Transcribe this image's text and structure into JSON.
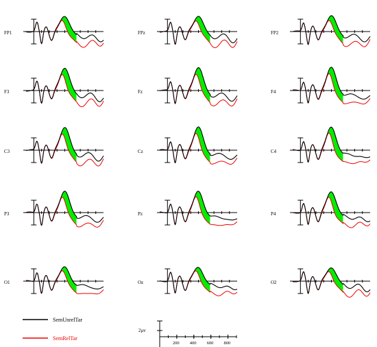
{
  "chart_data": {
    "type": "line",
    "description_rows": 5,
    "grid": false,
    "x_unit": "ms",
    "x_ticks": [
      200,
      400,
      600,
      800
    ],
    "xlim": [
      -100,
      900
    ],
    "scale_label": "2μv",
    "shading": "difference between SemUnrelTar and SemRelTar shaded where unrelated exceeds related",
    "shade_color": "#00ee00",
    "legend": {
      "placement": "bottom-left",
      "entries": [
        {
          "name": "SemUnrelTar",
          "color": "#000000"
        },
        {
          "name": "SemRelTar",
          "color": "#ee0000"
        }
      ]
    },
    "electrodes": [
      {
        "label": "FP1",
        "row": 0,
        "col": 0
      },
      {
        "label": "FPz",
        "row": 0,
        "col": 1
      },
      {
        "label": "FP2",
        "row": 0,
        "col": 2
      },
      {
        "label": "F3",
        "row": 1,
        "col": 0
      },
      {
        "label": "Fz",
        "row": 1,
        "col": 1
      },
      {
        "label": "F4",
        "row": 1,
        "col": 2
      },
      {
        "label": "C3",
        "row": 2,
        "col": 0
      },
      {
        "label": "Cz",
        "row": 2,
        "col": 1
      },
      {
        "label": "C4",
        "row": 2,
        "col": 2
      },
      {
        "label": "P3",
        "row": 3,
        "col": 0
      },
      {
        "label": "Pz",
        "row": 3,
        "col": 1
      },
      {
        "label": "P4",
        "row": 3,
        "col": 2
      },
      {
        "label": "O1",
        "row": 4,
        "col": 0
      },
      {
        "label": "Oz",
        "row": 4,
        "col": 1
      },
      {
        "label": "O2",
        "row": 4,
        "col": 2
      }
    ],
    "series": [
      {
        "name": "SemUnrelTar",
        "color": "#000000"
      },
      {
        "name": "SemRelTar",
        "color": "#ee0000"
      }
    ]
  }
}
